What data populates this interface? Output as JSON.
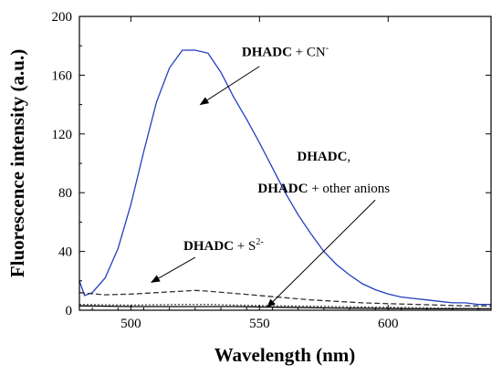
{
  "chart_data": {
    "type": "line",
    "xlabel": "Wavelength (nm)",
    "ylabel": "Fluorescence intensity (a.u.)",
    "xlim": [
      480,
      640
    ],
    "ylim": [
      0,
      200
    ],
    "x_ticks": [
      500,
      550,
      600
    ],
    "y_ticks": [
      0,
      40,
      80,
      120,
      160,
      200
    ],
    "grid": false,
    "series": [
      {
        "color": "#1f3fbf",
        "style": "solid",
        "x": [
          480,
          482,
          485,
          490,
          495,
          500,
          505,
          510,
          515,
          520,
          525,
          530,
          535,
          540,
          545,
          550,
          555,
          560,
          565,
          570,
          575,
          580,
          585,
          590,
          595,
          600,
          605,
          610,
          615,
          620,
          625,
          630,
          635,
          640
        ],
        "y": [
          20,
          10,
          12,
          22,
          42,
          72,
          108,
          142,
          165,
          177,
          177,
          175,
          162,
          145,
          130,
          114,
          97,
          80,
          65,
          52,
          40,
          31,
          24,
          18,
          14,
          11,
          9,
          8,
          7,
          6,
          5,
          5,
          4,
          4
        ]
      },
      {
        "color": "#333333",
        "style": "dashed",
        "x": [
          480,
          490,
          500,
          510,
          520,
          525,
          530,
          540,
          550,
          560,
          570,
          580,
          590,
          600,
          610,
          620,
          630,
          640
        ],
        "y": [
          12,
          10.5,
          11,
          12,
          13,
          13.5,
          13,
          11.5,
          10,
          8.5,
          7,
          6,
          5,
          4.5,
          4,
          3.5,
          3,
          3
        ]
      },
      {
        "color": "#000000",
        "style": "solid",
        "x": [
          480,
          500,
          520,
          530,
          540,
          560,
          580,
          600,
          620,
          640
        ],
        "y": [
          3,
          2.5,
          2.5,
          2.5,
          2.5,
          2,
          1.5,
          1.2,
          1,
          1
        ]
      },
      {
        "color": "#555555",
        "style": "dotted",
        "x": [
          480,
          500,
          520,
          530,
          540,
          560,
          580,
          600,
          620,
          640
        ],
        "y": [
          4,
          3.5,
          4,
          4,
          3.5,
          3,
          2.5,
          2,
          1.5,
          1.2
        ]
      }
    ],
    "annotations": [
      {
        "bold": "DHADC",
        "normal": " + CN",
        "sup": "-",
        "text_x": 560,
        "text_y": 173,
        "arrow_from": [
          550,
          166
        ],
        "arrow_to": [
          527,
          140
        ]
      },
      {
        "bold": "DHADC",
        "normal": ",",
        "sup": "",
        "text_x": 575,
        "text_y": 102
      },
      {
        "bold": "DHADC",
        "normal": " + other anions",
        "sup": "",
        "text_x": 575,
        "text_y": 80,
        "arrow_from": [
          595,
          75
        ],
        "arrow_to": [
          553,
          2
        ]
      },
      {
        "bold": "DHADC",
        "normal": " + S",
        "sup": "2-",
        "text_x": 536,
        "text_y": 41,
        "arrow_from": [
          525,
          36
        ],
        "arrow_to": [
          508,
          19
        ]
      }
    ]
  }
}
